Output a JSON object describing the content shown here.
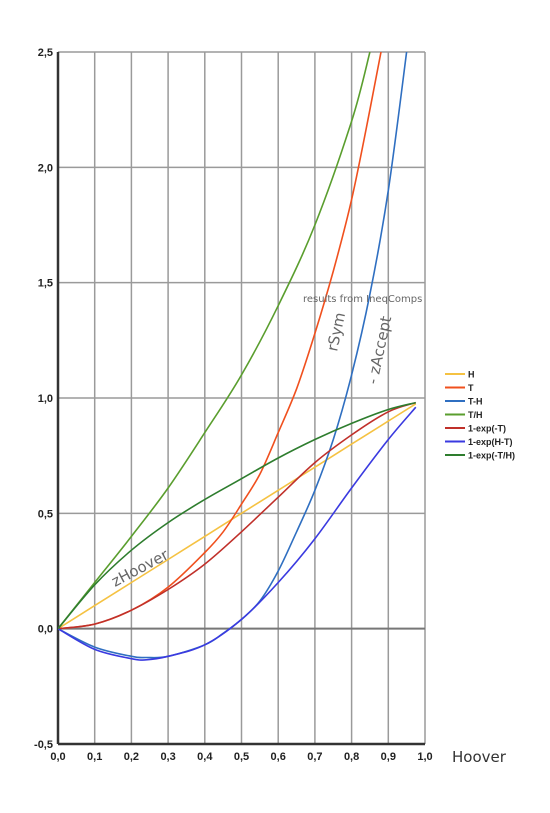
{
  "chart_data": {
    "type": "line",
    "xlabel": "Hoover",
    "ylabel": "",
    "xlim": [
      0.0,
      1.0
    ],
    "ylim": [
      -0.5,
      2.5
    ],
    "x_ticks": [
      "0,0",
      "0,1",
      "0,2",
      "0,3",
      "0,4",
      "0,5",
      "0,6",
      "0,7",
      "0,8",
      "0,9",
      "1,0"
    ],
    "y_ticks": [
      "-0,5",
      "0,0",
      "0,5",
      "1,0",
      "1,5",
      "2,0",
      "2,5"
    ],
    "grid": true,
    "legend_position": "right",
    "note": "results from IneqComps",
    "annotations": [
      {
        "text": "zHoover"
      },
      {
        "text": "rSym"
      },
      {
        "text": "- zAccept"
      }
    ],
    "series": [
      {
        "name": "H",
        "color": "#f5c242",
        "x": [
          0,
          0.1,
          0.2,
          0.3,
          0.4,
          0.5,
          0.6,
          0.7,
          0.8,
          0.9,
          0.975
        ],
        "y": [
          0,
          0.1,
          0.2,
          0.3,
          0.4,
          0.5,
          0.6,
          0.7,
          0.8,
          0.9,
          0.975
        ]
      },
      {
        "name": "T",
        "color": "#f0501e",
        "x": [
          0,
          0.1,
          0.2,
          0.3,
          0.4,
          0.45,
          0.5,
          0.55,
          0.6,
          0.65,
          0.7,
          0.75,
          0.8,
          0.85,
          0.88
        ],
        "y": [
          0,
          0.02,
          0.08,
          0.18,
          0.33,
          0.42,
          0.54,
          0.67,
          0.85,
          1.04,
          1.28,
          1.55,
          1.86,
          2.25,
          2.5
        ]
      },
      {
        "name": "T-H",
        "color": "#2f6fc1",
        "x": [
          0,
          0.1,
          0.2,
          0.24,
          0.3,
          0.4,
          0.45,
          0.5,
          0.55,
          0.6,
          0.65,
          0.7,
          0.75,
          0.8,
          0.85,
          0.9,
          0.95
        ],
        "y": [
          0,
          -0.08,
          -0.12,
          -0.125,
          -0.12,
          -0.07,
          -0.02,
          0.04,
          0.12,
          0.25,
          0.42,
          0.6,
          0.82,
          1.1,
          1.45,
          1.9,
          2.5
        ]
      },
      {
        "name": "T/H",
        "color": "#5a9e2e",
        "x": [
          0,
          0.1,
          0.2,
          0.3,
          0.4,
          0.5,
          0.6,
          0.7,
          0.8,
          0.85
        ],
        "y": [
          0,
          0.2,
          0.4,
          0.61,
          0.85,
          1.1,
          1.4,
          1.75,
          2.2,
          2.5
        ]
      },
      {
        "name": "1-exp(-T)",
        "color": "#c0302a",
        "x": [
          0,
          0.1,
          0.2,
          0.3,
          0.4,
          0.5,
          0.6,
          0.7,
          0.8,
          0.9,
          0.975
        ],
        "y": [
          0,
          0.02,
          0.08,
          0.17,
          0.28,
          0.42,
          0.57,
          0.72,
          0.84,
          0.94,
          0.98
        ]
      },
      {
        "name": "1-exp(H-T)",
        "color": "#3a3ae0",
        "x": [
          0,
          0.1,
          0.2,
          0.24,
          0.3,
          0.4,
          0.5,
          0.6,
          0.7,
          0.8,
          0.9,
          0.975
        ],
        "y": [
          0,
          -0.09,
          -0.13,
          -0.135,
          -0.12,
          -0.07,
          0.04,
          0.2,
          0.39,
          0.61,
          0.82,
          0.96
        ]
      },
      {
        "name": "1-exp(-T/H)",
        "color": "#2e7d2e",
        "x": [
          0,
          0.1,
          0.2,
          0.3,
          0.4,
          0.5,
          0.6,
          0.7,
          0.8,
          0.9,
          0.975
        ],
        "y": [
          0,
          0.19,
          0.34,
          0.46,
          0.56,
          0.65,
          0.74,
          0.82,
          0.89,
          0.95,
          0.98
        ]
      }
    ]
  }
}
